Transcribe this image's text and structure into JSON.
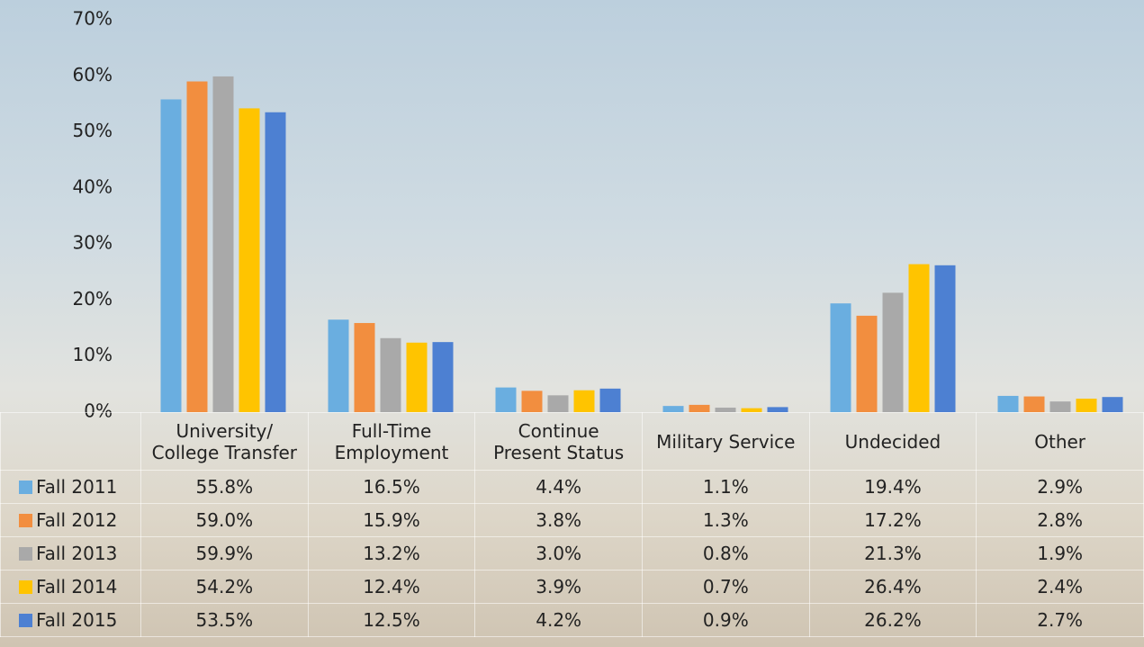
{
  "chart_data": {
    "type": "bar",
    "categories": [
      "University/\nCollege Transfer",
      "Full-Time\nEmployment",
      "Continue\nPresent Status",
      "Military Service",
      "Undecided",
      "Other"
    ],
    "series": [
      {
        "name": "Fall 2011",
        "color": "#6aaee0",
        "values": [
          55.8,
          16.5,
          4.4,
          1.1,
          19.4,
          2.9
        ],
        "value_labels": [
          "55.8%",
          "16.5%",
          "4.4%",
          "1.1%",
          "19.4%",
          "2.9%"
        ]
      },
      {
        "name": "Fall 2012",
        "color": "#f28e3f",
        "values": [
          59.0,
          15.9,
          3.8,
          1.3,
          17.2,
          2.8
        ],
        "value_labels": [
          "59.0%",
          "15.9%",
          "3.8%",
          "1.3%",
          "17.2%",
          "2.8%"
        ]
      },
      {
        "name": "Fall 2013",
        "color": "#a9a9a9",
        "values": [
          59.9,
          13.2,
          3.0,
          0.8,
          21.3,
          1.9
        ],
        "value_labels": [
          "59.9%",
          "13.2%",
          "3.0%",
          "0.8%",
          "21.3%",
          "1.9%"
        ]
      },
      {
        "name": "Fall 2014",
        "color": "#ffc400",
        "values": [
          54.2,
          12.4,
          3.9,
          0.7,
          26.4,
          2.4
        ],
        "value_labels": [
          "54.2%",
          "12.4%",
          "3.9%",
          "0.7%",
          "26.4%",
          "2.4%"
        ]
      },
      {
        "name": "Fall 2015",
        "color": "#4d80d2",
        "values": [
          53.5,
          12.5,
          4.2,
          0.9,
          26.2,
          2.7
        ],
        "value_labels": [
          "53.5%",
          "12.5%",
          "4.2%",
          "0.9%",
          "26.2%",
          "2.7%"
        ]
      }
    ],
    "ylim": [
      0,
      70
    ],
    "yticks": [
      {
        "value": 0,
        "label": "0%"
      },
      {
        "value": 10,
        "label": "10%"
      },
      {
        "value": 20,
        "label": "20%"
      },
      {
        "value": 30,
        "label": "30%"
      },
      {
        "value": 40,
        "label": "40%"
      },
      {
        "value": 50,
        "label": "50%"
      },
      {
        "value": 60,
        "label": "60%"
      },
      {
        "value": 70,
        "label": "70%"
      }
    ],
    "grid": false
  }
}
